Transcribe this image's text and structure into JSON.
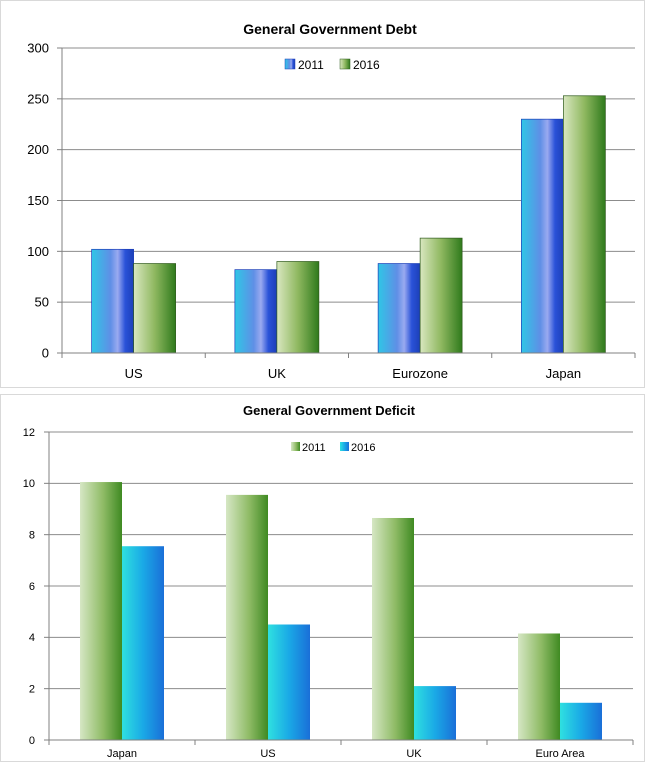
{
  "chart_data": [
    {
      "type": "bar",
      "title": "General Government Debt",
      "categories": [
        "US",
        "UK",
        "Eurozone",
        "Japan"
      ],
      "series": [
        {
          "name": "2011",
          "values": [
            102,
            82,
            88,
            230
          ],
          "color": "#3a7fd8"
        },
        {
          "name": "2016",
          "values": [
            88,
            90,
            113,
            253
          ],
          "color": "#5a9a2c"
        }
      ],
      "ylim": [
        0,
        300
      ],
      "yticks": [
        0,
        50,
        100,
        150,
        200,
        250,
        300
      ],
      "grid": true,
      "legend": "top-center",
      "xlabel": "",
      "ylabel": ""
    },
    {
      "type": "bar",
      "title": "General Government Deficit",
      "categories": [
        "Japan",
        "US",
        "UK",
        "Euro Area"
      ],
      "series": [
        {
          "name": "2011",
          "values": [
            10.05,
            9.55,
            8.65,
            4.15
          ],
          "color": "#5a9a2c"
        },
        {
          "name": "2016",
          "values": [
            7.55,
            4.5,
            2.1,
            1.45
          ],
          "color": "#1a9fdc"
        }
      ],
      "ylim": [
        0,
        12
      ],
      "yticks": [
        0,
        2,
        4,
        6,
        8,
        10,
        12
      ],
      "grid": true,
      "legend": "top-center",
      "xlabel": "",
      "ylabel": ""
    }
  ]
}
